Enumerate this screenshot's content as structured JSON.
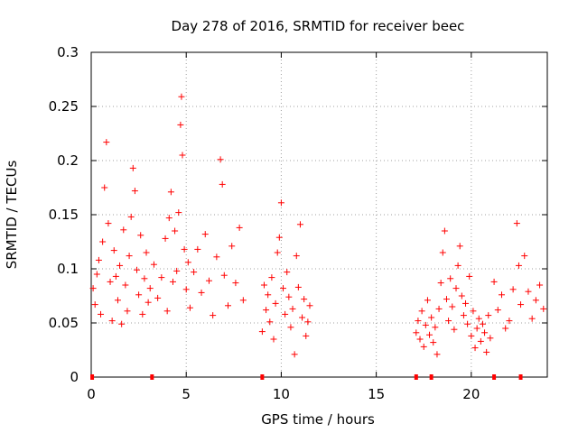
{
  "chart_data": {
    "type": "scatter",
    "title": "Day 278 of 2016, SRMTID for receiver beec",
    "xlabel": "GPS time / hours",
    "ylabel": "SRMTID / TECUs",
    "xlim": [
      0,
      24
    ],
    "ylim": [
      0,
      0.3
    ],
    "xticks": [
      0,
      5,
      10,
      15,
      20
    ],
    "yticks": [
      0,
      0.05,
      0.1,
      0.15,
      0.2,
      0.25,
      0.3
    ],
    "ytick_labels": [
      "0",
      "0.05",
      "0.1",
      "0.15",
      "0.2",
      "0.25",
      "0.3"
    ],
    "grid": true,
    "marker": "+",
    "color": "#ff0000",
    "series": [
      {
        "name": "SRMTID",
        "points": [
          [
            0.1,
            0.082
          ],
          [
            0.2,
            0.067
          ],
          [
            0.3,
            0.095
          ],
          [
            0.4,
            0.108
          ],
          [
            0.5,
            0.058
          ],
          [
            0.6,
            0.125
          ],
          [
            0.7,
            0.175
          ],
          [
            0.8,
            0.217
          ],
          [
            0.9,
            0.142
          ],
          [
            1.0,
            0.088
          ],
          [
            1.1,
            0.052
          ],
          [
            1.2,
            0.117
          ],
          [
            1.3,
            0.093
          ],
          [
            1.4,
            0.071
          ],
          [
            1.5,
            0.103
          ],
          [
            1.6,
            0.049
          ],
          [
            1.7,
            0.136
          ],
          [
            1.8,
            0.085
          ],
          [
            1.9,
            0.061
          ],
          [
            2.0,
            0.112
          ],
          [
            2.1,
            0.148
          ],
          [
            2.2,
            0.193
          ],
          [
            2.3,
            0.172
          ],
          [
            2.4,
            0.099
          ],
          [
            2.5,
            0.076
          ],
          [
            2.6,
            0.131
          ],
          [
            2.7,
            0.058
          ],
          [
            2.8,
            0.091
          ],
          [
            2.9,
            0.115
          ],
          [
            3.0,
            0.069
          ],
          [
            3.1,
            0.082
          ],
          [
            3.3,
            0.104
          ],
          [
            3.5,
            0.073
          ],
          [
            3.7,
            0.092
          ],
          [
            3.9,
            0.128
          ],
          [
            4.0,
            0.061
          ],
          [
            4.1,
            0.147
          ],
          [
            4.2,
            0.171
          ],
          [
            4.3,
            0.088
          ],
          [
            4.4,
            0.135
          ],
          [
            4.5,
            0.098
          ],
          [
            4.6,
            0.152
          ],
          [
            4.7,
            0.233
          ],
          [
            4.75,
            0.259
          ],
          [
            4.8,
            0.205
          ],
          [
            4.9,
            0.118
          ],
          [
            5.0,
            0.081
          ],
          [
            5.1,
            0.106
          ],
          [
            5.2,
            0.064
          ],
          [
            5.4,
            0.097
          ],
          [
            5.6,
            0.118
          ],
          [
            5.8,
            0.078
          ],
          [
            6.0,
            0.132
          ],
          [
            6.2,
            0.089
          ],
          [
            6.4,
            0.057
          ],
          [
            6.6,
            0.111
          ],
          [
            6.8,
            0.201
          ],
          [
            6.9,
            0.178
          ],
          [
            7.0,
            0.094
          ],
          [
            7.2,
            0.066
          ],
          [
            7.4,
            0.121
          ],
          [
            7.6,
            0.087
          ],
          [
            7.8,
            0.138
          ],
          [
            8.0,
            0.071
          ],
          [
            9.0,
            0.042
          ],
          [
            9.1,
            0.085
          ],
          [
            9.2,
            0.062
          ],
          [
            9.3,
            0.076
          ],
          [
            9.4,
            0.051
          ],
          [
            9.5,
            0.092
          ],
          [
            9.6,
            0.035
          ],
          [
            9.7,
            0.068
          ],
          [
            9.8,
            0.115
          ],
          [
            9.9,
            0.129
          ],
          [
            10.0,
            0.161
          ],
          [
            10.1,
            0.082
          ],
          [
            10.2,
            0.058
          ],
          [
            10.3,
            0.097
          ],
          [
            10.4,
            0.074
          ],
          [
            10.5,
            0.046
          ],
          [
            10.6,
            0.063
          ],
          [
            10.7,
            0.021
          ],
          [
            10.8,
            0.112
          ],
          [
            10.9,
            0.083
          ],
          [
            11.0,
            0.141
          ],
          [
            11.1,
            0.055
          ],
          [
            11.2,
            0.072
          ],
          [
            11.3,
            0.038
          ],
          [
            11.4,
            0.051
          ],
          [
            11.5,
            0.066
          ],
          [
            17.1,
            0.041
          ],
          [
            17.2,
            0.052
          ],
          [
            17.3,
            0.035
          ],
          [
            17.4,
            0.061
          ],
          [
            17.5,
            0.028
          ],
          [
            17.6,
            0.048
          ],
          [
            17.7,
            0.071
          ],
          [
            17.8,
            0.039
          ],
          [
            17.9,
            0.055
          ],
          [
            18.0,
            0.032
          ],
          [
            18.1,
            0.046
          ],
          [
            18.2,
            0.021
          ],
          [
            18.3,
            0.063
          ],
          [
            18.4,
            0.087
          ],
          [
            18.5,
            0.115
          ],
          [
            18.6,
            0.135
          ],
          [
            18.7,
            0.072
          ],
          [
            18.8,
            0.052
          ],
          [
            18.9,
            0.091
          ],
          [
            19.0,
            0.065
          ],
          [
            19.1,
            0.044
          ],
          [
            19.2,
            0.082
          ],
          [
            19.3,
            0.103
          ],
          [
            19.4,
            0.121
          ],
          [
            19.5,
            0.075
          ],
          [
            19.6,
            0.057
          ],
          [
            19.7,
            0.068
          ],
          [
            19.8,
            0.049
          ],
          [
            19.9,
            0.093
          ],
          [
            20.0,
            0.038
          ],
          [
            20.1,
            0.061
          ],
          [
            20.2,
            0.027
          ],
          [
            20.3,
            0.045
          ],
          [
            20.4,
            0.054
          ],
          [
            20.5,
            0.033
          ],
          [
            20.6,
            0.049
          ],
          [
            20.7,
            0.041
          ],
          [
            20.8,
            0.023
          ],
          [
            20.9,
            0.057
          ],
          [
            21.0,
            0.036
          ],
          [
            21.2,
            0.088
          ],
          [
            21.4,
            0.062
          ],
          [
            21.6,
            0.076
          ],
          [
            21.8,
            0.045
          ],
          [
            22.0,
            0.052
          ],
          [
            22.2,
            0.081
          ],
          [
            22.4,
            0.142
          ],
          [
            22.5,
            0.103
          ],
          [
            22.6,
            0.067
          ],
          [
            22.8,
            0.112
          ],
          [
            23.0,
            0.079
          ],
          [
            23.2,
            0.054
          ],
          [
            23.4,
            0.071
          ],
          [
            23.6,
            0.085
          ],
          [
            23.8,
            0.063
          ]
        ]
      }
    ],
    "coverage_marks_x": [
      0.05,
      3.2,
      9.0,
      17.1,
      17.9,
      21.2,
      22.6
    ]
  }
}
